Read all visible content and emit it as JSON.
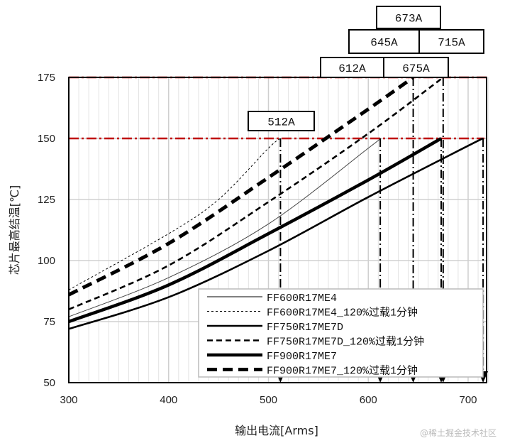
{
  "chart_data": {
    "type": "line",
    "title": "",
    "xlabel": "输出电流[Arms]",
    "ylabel": "芯片最高结温[℃]",
    "xlim": [
      300,
      720
    ],
    "ylim": [
      50,
      175
    ],
    "xticks": [
      300,
      400,
      500,
      600,
      700
    ],
    "yticks": [
      50,
      75,
      100,
      125,
      150,
      175
    ],
    "grid": true,
    "legend_position": "bottom-right",
    "series": [
      {
        "name": "FF600R17ME4",
        "style": "thin-solid",
        "x": [
          300,
          400,
          500,
          600,
          612
        ],
        "y": [
          77,
          93,
          115,
          146,
          150
        ]
      },
      {
        "name": "FF600R17ME4_120%过载1分钟",
        "style": "thin-dashed",
        "x": [
          300,
          400,
          450,
          500,
          512
        ],
        "y": [
          88,
          111,
          125,
          146,
          150
        ]
      },
      {
        "name": "FF750R17ME7D",
        "style": "solid",
        "x": [
          300,
          400,
          500,
          600,
          700,
          715
        ],
        "y": [
          72,
          85,
          104,
          126,
          147,
          150
        ]
      },
      {
        "name": "FF750R17ME7D_120%过载1分钟",
        "style": "dashed",
        "x": [
          300,
          400,
          500,
          600,
          675
        ],
        "y": [
          80,
          98,
          124,
          152,
          175
        ]
      },
      {
        "name": "FF900R17ME7",
        "style": "thick-solid",
        "x": [
          300,
          400,
          500,
          600,
          673
        ],
        "y": [
          75,
          90,
          111,
          133,
          150
        ]
      },
      {
        "name": "FF900R17ME7_120%过载1分钟",
        "style": "thick-dashed",
        "x": [
          300,
          400,
          500,
          600,
          645
        ],
        "y": [
          86,
          107,
          134,
          162,
          175
        ]
      }
    ],
    "reference_lines": [
      {
        "y": 175,
        "color": "#c00000",
        "style": "dash-dot"
      },
      {
        "y": 150,
        "color": "#c00000",
        "style": "dash-dot"
      }
    ],
    "markers": [
      {
        "x": 512,
        "y": 150,
        "label": "512A"
      },
      {
        "x": 612,
        "y": 150,
        "label": "612A"
      },
      {
        "x": 645,
        "y": 175,
        "label": "645A"
      },
      {
        "x": 673,
        "y": 150,
        "label": "673A"
      },
      {
        "x": 675,
        "y": 175,
        "label": "675A"
      },
      {
        "x": 715,
        "y": 150,
        "label": "715A"
      }
    ]
  },
  "watermark": "@稀土掘金技术社区"
}
